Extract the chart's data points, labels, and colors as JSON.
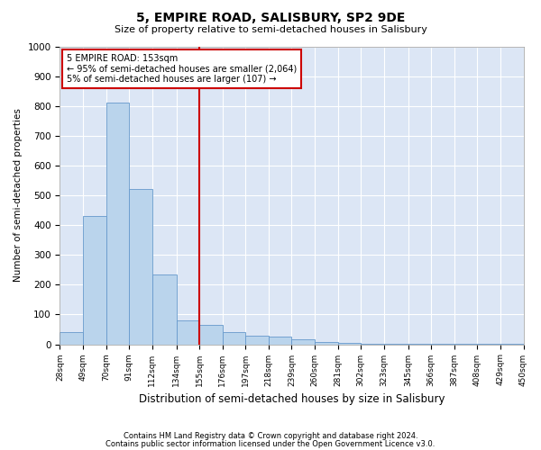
{
  "title": "5, EMPIRE ROAD, SALISBURY, SP2 9DE",
  "subtitle": "Size of property relative to semi-detached houses in Salisbury",
  "xlabel": "Distribution of semi-detached houses by size in Salisbury",
  "ylabel": "Number of semi-detached properties",
  "footer_line1": "Contains HM Land Registry data © Crown copyright and database right 2024.",
  "footer_line2": "Contains public sector information licensed under the Open Government Licence v3.0.",
  "annotation_line1": "5 EMPIRE ROAD: 153sqm",
  "annotation_line2": "← 95% of semi-detached houses are smaller (2,064)",
  "annotation_line3": "5% of semi-detached houses are larger (107) →",
  "bin_edges": [
    28,
    49,
    70,
    91,
    112,
    134,
    155,
    176,
    197,
    218,
    239,
    260,
    281,
    302,
    323,
    345,
    366,
    387,
    408,
    429,
    450
  ],
  "bin_counts": [
    40,
    430,
    810,
    520,
    235,
    80,
    65,
    40,
    30,
    25,
    18,
    8,
    5,
    3,
    2,
    2,
    2,
    2,
    2,
    2
  ],
  "bar_color": "#bad4ec",
  "bar_edge_color": "#6699cc",
  "vline_x": 155,
  "vline_color": "#cc0000",
  "annotation_box_edge_color": "#cc0000",
  "bg_color": "#dce6f5",
  "grid_color": "#ffffff",
  "ylim": [
    0,
    1000
  ],
  "yticks": [
    0,
    100,
    200,
    300,
    400,
    500,
    600,
    700,
    800,
    900,
    1000
  ]
}
